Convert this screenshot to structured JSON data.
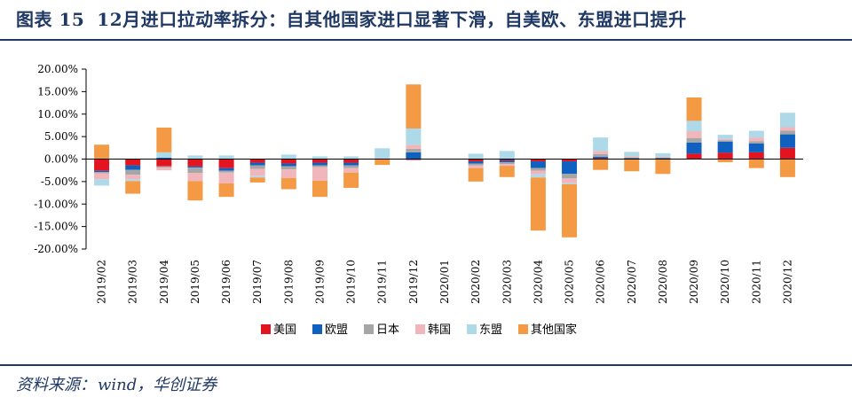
{
  "title": {
    "figure_label": "图表 15",
    "text": "12月进口拉动率拆分：自其他国家进口显著下滑，自美欧、东盟进口提升"
  },
  "source": {
    "label": "资料来源：",
    "value": "wind，华创证券"
  },
  "colors": {
    "rule": "#1f3864",
    "series": [
      "#e3141f",
      "#1060c0",
      "#a6a6a6",
      "#f1b6bc",
      "#add9e8",
      "#f49a45"
    ]
  },
  "chart_data": {
    "type": "bar",
    "stacked": true,
    "title": "",
    "xlabel": "",
    "ylabel": "",
    "ylim": [
      -20,
      20
    ],
    "y_ticks": [
      20,
      15,
      10,
      5,
      0,
      -5,
      -10,
      -15,
      -20
    ],
    "y_tick_labels": [
      "20.00%",
      "15.00%",
      "10.00%",
      "5.00%",
      "0.00%",
      "-5.00%",
      "-10.00%",
      "-15.00%",
      "-20.00%"
    ],
    "grid": false,
    "legend_position": "bottom",
    "categories": [
      "2019/02",
      "2019/03",
      "2019/04",
      "2019/05",
      "2019/06",
      "2019/07",
      "2019/08",
      "2019/09",
      "2019/10",
      "2019/11",
      "2019/12",
      "2020/01",
      "2020/02",
      "2020/03",
      "2020/04",
      "2020/05",
      "2020/06",
      "2020/07",
      "2020/08",
      "2020/09",
      "2020/10",
      "2020/11",
      "2020/12"
    ],
    "series": [
      {
        "name": "美国",
        "color": "#e3141f",
        "values": [
          -2.6,
          -1.4,
          -1.6,
          -1.6,
          -2.0,
          -0.8,
          -1.0,
          -0.8,
          -0.8,
          0.0,
          -0.2,
          0.0,
          -0.5,
          -0.3,
          -0.5,
          -0.5,
          0.2,
          0.1,
          0.1,
          1.2,
          1.4,
          1.5,
          2.5
        ]
      },
      {
        "name": "欧盟",
        "color": "#1060c0",
        "values": [
          -0.3,
          -1.0,
          0.3,
          -0.3,
          -0.6,
          -0.6,
          -0.6,
          -0.6,
          -0.6,
          0.0,
          1.5,
          0.0,
          -0.5,
          -0.4,
          -1.5,
          -2.8,
          0.3,
          0.1,
          0.1,
          2.5,
          2.5,
          2.0,
          3.0
        ]
      },
      {
        "name": "日本",
        "color": "#a6a6a6",
        "values": [
          -0.3,
          -1.1,
          -0.3,
          -1.2,
          -0.4,
          -0.8,
          -0.7,
          -0.4,
          -0.6,
          0.1,
          0.8,
          0.0,
          -0.4,
          -0.4,
          -0.6,
          -1.0,
          0.6,
          0.1,
          0.1,
          1.0,
          0.3,
          0.5,
          0.8
        ]
      },
      {
        "name": "韩国",
        "color": "#f1b6bc",
        "values": [
          -1.3,
          -1.0,
          -0.6,
          -1.8,
          -2.4,
          -1.5,
          -1.9,
          -3.0,
          -1.0,
          0.1,
          0.9,
          0.0,
          -0.6,
          -0.4,
          -0.8,
          -1.0,
          0.7,
          0.3,
          0.2,
          1.5,
          0.3,
          0.8,
          0.8
        ]
      },
      {
        "name": "东盟",
        "color": "#add9e8",
        "values": [
          -1.4,
          -0.4,
          1.2,
          0.8,
          0.8,
          -0.4,
          1.0,
          0.6,
          0.6,
          2.2,
          3.6,
          0.0,
          1.2,
          1.8,
          -0.7,
          -0.3,
          3.0,
          1.0,
          0.8,
          2.3,
          0.9,
          1.5,
          3.2
        ]
      },
      {
        "name": "其他国家",
        "color": "#f49a45",
        "values": [
          3.2,
          -2.8,
          5.5,
          -4.3,
          -3.0,
          -1.1,
          -2.5,
          -3.6,
          -3.4,
          -1.3,
          9.8,
          0.0,
          -3.0,
          -2.5,
          -11.8,
          -11.8,
          -2.4,
          -2.7,
          -3.3,
          5.2,
          -0.7,
          -2.0,
          -4.0
        ]
      }
    ]
  }
}
